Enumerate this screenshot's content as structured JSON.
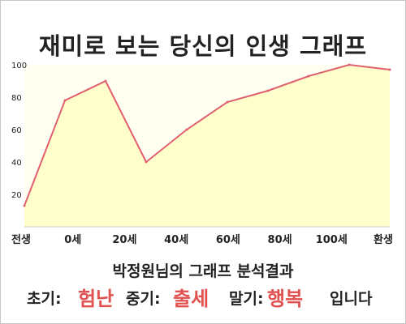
{
  "page": {
    "title": "재미로 보는 당신의 인생 그래프",
    "subtitle": "박정원님의 그래프 분석결과",
    "result": {
      "early_label": "초기:",
      "early_value": "험난",
      "mid_label": "중기:",
      "mid_value": "출세",
      "late_label": "말기:",
      "late_value": "행복",
      "ending": "입니다"
    }
  },
  "colors": {
    "line": "#e06070",
    "fill": "#ffffcc",
    "plot_bg": "#fffff2",
    "accent": "#e0514f"
  },
  "chart_data": {
    "type": "area",
    "x": [
      0,
      1,
      2,
      3,
      4,
      5,
      6,
      7,
      8,
      9
    ],
    "values": [
      13,
      78,
      90,
      40,
      60,
      77,
      84,
      93,
      100,
      97
    ],
    "x_ticks": [
      {
        "x": 0,
        "label": "전생"
      },
      {
        "x": 1,
        "label": "0세"
      },
      {
        "x": 2,
        "label": "20세"
      },
      {
        "x": 3,
        "label": "40세"
      },
      {
        "x": 4,
        "label": "60세"
      },
      {
        "x": 5,
        "label": "80세"
      },
      {
        "x": 6,
        "label": "100세"
      },
      {
        "x": 7,
        "label": "환생"
      }
    ],
    "y_ticks": [
      20,
      40,
      60,
      80,
      100
    ],
    "ylim": [
      0,
      100
    ],
    "grid": false,
    "legend": "none"
  }
}
